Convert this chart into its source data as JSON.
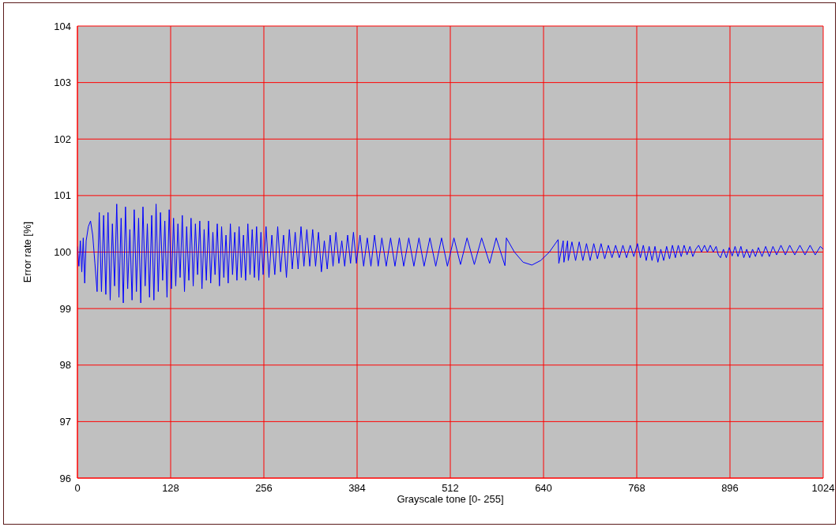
{
  "chart_data": {
    "type": "line",
    "xlabel": "Grayscale tone   [0- 255]",
    "ylabel": "Error rate [%]",
    "xlim": [
      0,
      1024
    ],
    "xticks": [
      0,
      128,
      256,
      384,
      512,
      640,
      768,
      896,
      1024
    ],
    "ylim": [
      96,
      104
    ],
    "yticks": [
      96,
      97,
      98,
      99,
      100,
      101,
      102,
      103,
      104
    ],
    "grid": true,
    "x": [
      0,
      2,
      4,
      6,
      8,
      10,
      12,
      15,
      18,
      21,
      24,
      27,
      30,
      33,
      36,
      39,
      42,
      45,
      48,
      51,
      54,
      57,
      60,
      63,
      66,
      69,
      72,
      75,
      78,
      81,
      84,
      87,
      90,
      93,
      96,
      99,
      102,
      105,
      108,
      111,
      114,
      117,
      120,
      123,
      126,
      129,
      132,
      135,
      138,
      141,
      144,
      147,
      150,
      153,
      156,
      159,
      162,
      165,
      168,
      171,
      174,
      177,
      180,
      183,
      186,
      189,
      192,
      195,
      198,
      201,
      204,
      207,
      210,
      213,
      216,
      219,
      222,
      225,
      228,
      231,
      234,
      237,
      240,
      243,
      246,
      249,
      252,
      255,
      259,
      263,
      267,
      271,
      275,
      279,
      283,
      287,
      291,
      295,
      299,
      303,
      307,
      311,
      315,
      319,
      323,
      327,
      331,
      335,
      339,
      343,
      347,
      351,
      355,
      359,
      363,
      367,
      371,
      375,
      379,
      383,
      388,
      393,
      398,
      403,
      408,
      413,
      418,
      424,
      430,
      436,
      442,
      448,
      455,
      462,
      469,
      476,
      484,
      492,
      500,
      508,
      517,
      526,
      535,
      545,
      555,
      566,
      575,
      587,
      589,
      600,
      612,
      624,
      636,
      648,
      660,
      661,
      667,
      668,
      673,
      674,
      679,
      684,
      689,
      694,
      699,
      704,
      709,
      714,
      719,
      724,
      729,
      734,
      739,
      744,
      749,
      754,
      759,
      764,
      769,
      773,
      777,
      781,
      785,
      789,
      793,
      797,
      801,
      805,
      809,
      813,
      817,
      821,
      825,
      829,
      833,
      837,
      841,
      845,
      849,
      853,
      857,
      861,
      865,
      869,
      873,
      877,
      880,
      883,
      887,
      891,
      895,
      899,
      903,
      907,
      911,
      915,
      919,
      923,
      927,
      931,
      935,
      940,
      945,
      950,
      955,
      960,
      966,
      972,
      978,
      985,
      992,
      999,
      1006,
      1013,
      1020,
      1024
    ],
    "series": [
      {
        "color": "#0000ff",
        "values": [
          100.1,
          99.75,
          100.2,
          99.65,
          100.25,
          99.45,
          100.2,
          100.45,
          100.55,
          100.3,
          99.8,
          99.3,
          100.7,
          99.3,
          100.65,
          99.25,
          100.7,
          99.15,
          100.5,
          99.4,
          100.85,
          99.2,
          100.6,
          99.1,
          100.8,
          99.35,
          100.4,
          99.15,
          100.75,
          99.3,
          100.6,
          99.1,
          100.8,
          99.4,
          100.5,
          99.2,
          100.65,
          99.15,
          100.85,
          99.3,
          100.7,
          99.5,
          100.55,
          99.2,
          100.75,
          99.35,
          100.6,
          99.4,
          100.5,
          99.55,
          100.65,
          99.3,
          100.45,
          99.5,
          100.6,
          99.4,
          100.5,
          99.6,
          100.55,
          99.35,
          100.4,
          99.5,
          100.55,
          99.45,
          100.35,
          99.6,
          100.5,
          99.4,
          100.45,
          99.55,
          100.3,
          99.45,
          100.5,
          99.6,
          100.35,
          99.5,
          100.45,
          99.55,
          100.3,
          99.5,
          100.5,
          99.6,
          100.4,
          99.55,
          100.45,
          99.5,
          100.35,
          99.6,
          100.45,
          99.55,
          100.3,
          99.6,
          100.45,
          99.65,
          100.3,
          99.55,
          100.4,
          99.7,
          100.35,
          99.7,
          100.45,
          99.75,
          100.4,
          99.75,
          100.4,
          99.75,
          100.35,
          99.65,
          100.2,
          99.7,
          100.3,
          99.75,
          100.35,
          99.8,
          100.2,
          99.75,
          100.3,
          99.8,
          100.35,
          99.8,
          100.3,
          99.75,
          100.25,
          99.75,
          100.3,
          99.75,
          100.25,
          99.75,
          100.25,
          99.75,
          100.25,
          99.75,
          100.25,
          99.75,
          100.25,
          99.75,
          100.25,
          99.75,
          100.25,
          99.75,
          100.25,
          99.78,
          100.25,
          99.78,
          100.25,
          99.8,
          100.25,
          99.76,
          100.25,
          100.0,
          99.82,
          99.77,
          99.85,
          100.0,
          100.22,
          99.8,
          100.2,
          99.82,
          100.2,
          99.85,
          100.18,
          99.85,
          100.18,
          99.85,
          100.15,
          99.85,
          100.15,
          99.88,
          100.15,
          99.88,
          100.12,
          99.9,
          100.12,
          99.9,
          100.12,
          99.9,
          100.12,
          99.92,
          100.15,
          99.9,
          100.12,
          99.85,
          100.1,
          99.85,
          100.1,
          99.82,
          100.05,
          99.85,
          100.1,
          99.88,
          100.12,
          99.9,
          100.12,
          99.92,
          100.12,
          99.95,
          100.1,
          99.92,
          100.05,
          100.12,
          100.0,
          100.12,
          100.0,
          100.12,
          100.0,
          100.1,
          99.95,
          99.9,
          100.05,
          99.9,
          100.08,
          99.93,
          100.1,
          99.92,
          100.1,
          99.9,
          100.05,
          99.9,
          100.05,
          99.92,
          100.08,
          99.92,
          100.1,
          99.92,
          100.1,
          99.95,
          100.12,
          99.95,
          100.12,
          99.95,
          100.12,
          99.95,
          100.12,
          99.95,
          100.1,
          100.05
        ]
      }
    ]
  }
}
